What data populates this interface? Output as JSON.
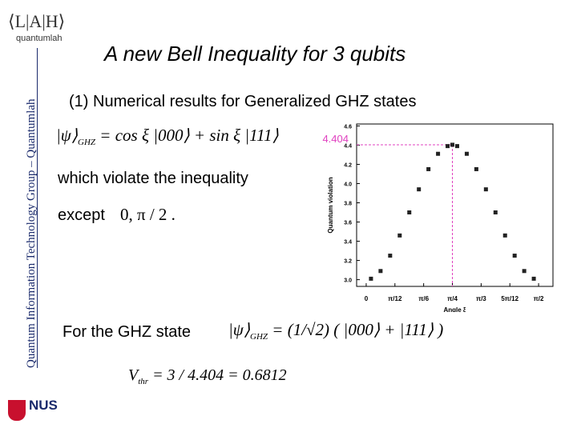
{
  "sidebar": {
    "logo": "⟨L|A|H⟩",
    "logo_caption": "quantumlah",
    "vertical_text": "Quantum Information Technology Group – Quantumlah",
    "nus": "NUS"
  },
  "title": "A new Bell Inequality for 3 qubits",
  "section": "(1) Numerical results for Generalized GHZ states",
  "formula1": {
    "ket": "|ψ⟩",
    "sub": "GHZ",
    "rest": "= cos ξ |000⟩ + sin ξ |111⟩"
  },
  "violate_text": "which violate the inequality",
  "except_text": "except",
  "except_values": "0, π / 2 .",
  "ghz_text": "For the GHZ state",
  "formula2": {
    "ket": "|ψ⟩",
    "sub": "GHZ",
    "rest": "= (1/√2) ( |000⟩ + |111⟩ )"
  },
  "formula3": {
    "v": "V",
    "sub": "thr",
    "rest": "= 3 / 4.404 = 0.6812"
  },
  "chart": {
    "type": "scatter",
    "x_label": "Angle ξ",
    "y_label": "Quantum violation",
    "color": "#222222",
    "annotation_color": "#e040c0",
    "x": [
      2.5,
      7.5,
      12.5,
      17.5,
      22.5,
      27.5,
      32.5,
      37.5,
      42.5,
      45,
      47.5,
      52.5,
      57.5,
      62.5,
      67.5,
      72.5,
      77.5,
      82.5,
      87.5
    ],
    "values": [
      3.01,
      3.09,
      3.25,
      3.46,
      3.7,
      3.94,
      4.15,
      4.31,
      4.39,
      4.404,
      4.39,
      4.31,
      4.15,
      3.94,
      3.7,
      3.46,
      3.25,
      3.09,
      3.01
    ],
    "annotated_index": 9,
    "xlim": [
      -5,
      97.5
    ],
    "ylim": [
      2.93,
      4.62
    ],
    "xticks": [
      0,
      {
        "value": 15,
        "label": "π/12"
      },
      {
        "value": 30,
        "label": "π/6"
      },
      {
        "value": 45,
        "label": "π/4"
      },
      {
        "value": 60,
        "label": "π/3"
      },
      {
        "value": 75,
        "label": "5π/12"
      },
      {
        "value": 90,
        "label": "π/2"
      }
    ],
    "yticks": [
      {
        "value": 3.0,
        "label": "3.0"
      },
      3.2,
      3.4,
      3.6,
      3.8,
      {
        "value": 4.0,
        "label": "4.0"
      },
      4.2,
      4.4,
      4.6
    ]
  }
}
